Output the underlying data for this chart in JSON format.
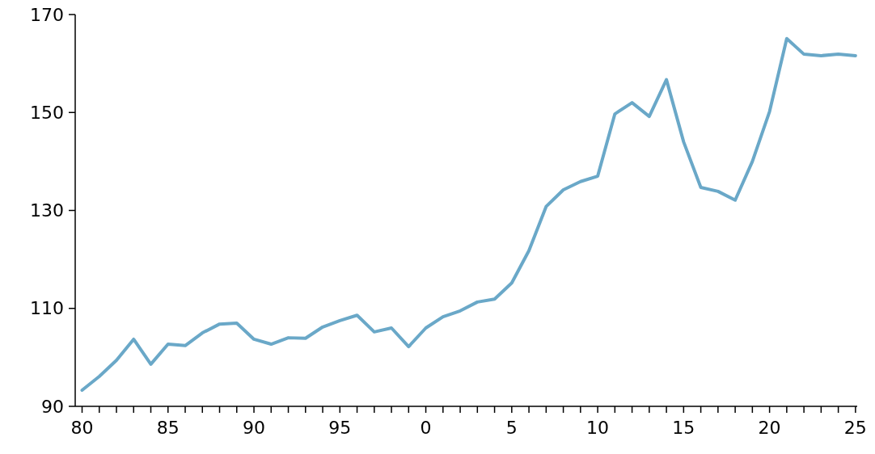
{
  "chart_data": {
    "type": "line",
    "categories": [
      "80",
      null,
      null,
      null,
      null,
      "85",
      null,
      null,
      null,
      null,
      "90",
      null,
      null,
      null,
      null,
      "95",
      null,
      null,
      null,
      null,
      "0",
      null,
      null,
      null,
      null,
      "5",
      null,
      null,
      null,
      null,
      "10",
      null,
      null,
      null,
      null,
      "15",
      null,
      null,
      null,
      null,
      "20",
      null,
      null,
      null,
      null,
      "25"
    ],
    "series": [
      {
        "color": "#6aa8c8",
        "values": [
          93.3,
          96.1,
          99.4,
          103.7,
          98.6,
          102.7,
          102.4,
          105,
          106.8,
          107,
          103.7,
          102.7,
          104,
          103.9,
          106.2,
          107.5,
          108.6,
          105.2,
          106,
          102.2,
          106,
          108.3,
          109.5,
          111.3,
          111.9,
          115.2,
          121.8,
          130.8,
          134.2,
          135.9,
          137,
          149.7,
          152,
          149.2,
          156.7,
          144,
          134.7,
          133.9,
          132.1,
          140,
          150.2,
          165.1,
          161.9,
          161.6,
          161.9,
          161.6
        ]
      }
    ],
    "ylim": [
      90,
      170
    ],
    "yticks": [
      90,
      110,
      130,
      150,
      170
    ],
    "grid": false,
    "line_style": "solid"
  }
}
